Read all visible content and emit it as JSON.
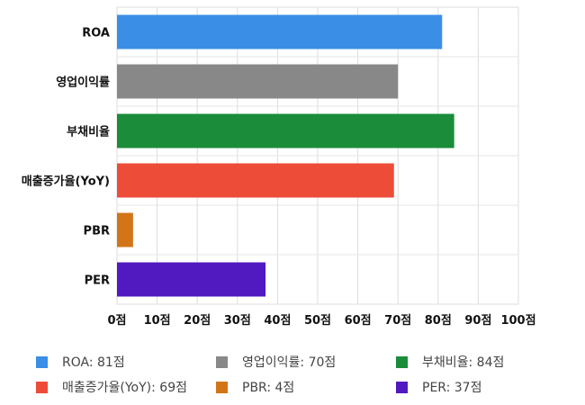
{
  "chart_data": {
    "type": "bar",
    "orientation": "horizontal",
    "categories": [
      "ROA",
      "영업이익률",
      "부채비율",
      "매출증가율(YoY)",
      "PBR",
      "PER"
    ],
    "values": [
      81,
      70,
      84,
      69,
      4,
      37
    ],
    "colors": [
      "#3a8ee6",
      "#888888",
      "#1a8c3a",
      "#ec4c38",
      "#d27519",
      "#5119c0"
    ],
    "xlim": [
      0,
      100
    ],
    "xticks": [
      "0점",
      "10점",
      "20점",
      "30점",
      "40점",
      "50점",
      "60점",
      "70점",
      "80점",
      "90점",
      "100점"
    ],
    "grid": true,
    "legend_position": "bottom"
  },
  "legend": {
    "items": [
      {
        "label": "ROA: 81점",
        "color": "#3a8ee6"
      },
      {
        "label": "영업이익률: 70점",
        "color": "#888888"
      },
      {
        "label": "부채비율: 84점",
        "color": "#1a8c3a"
      },
      {
        "label": "매출증가율(YoY): 69점",
        "color": "#ec4c38"
      },
      {
        "label": "PBR: 4점",
        "color": "#d27519"
      },
      {
        "label": "PER: 37점",
        "color": "#5119c0"
      }
    ]
  }
}
